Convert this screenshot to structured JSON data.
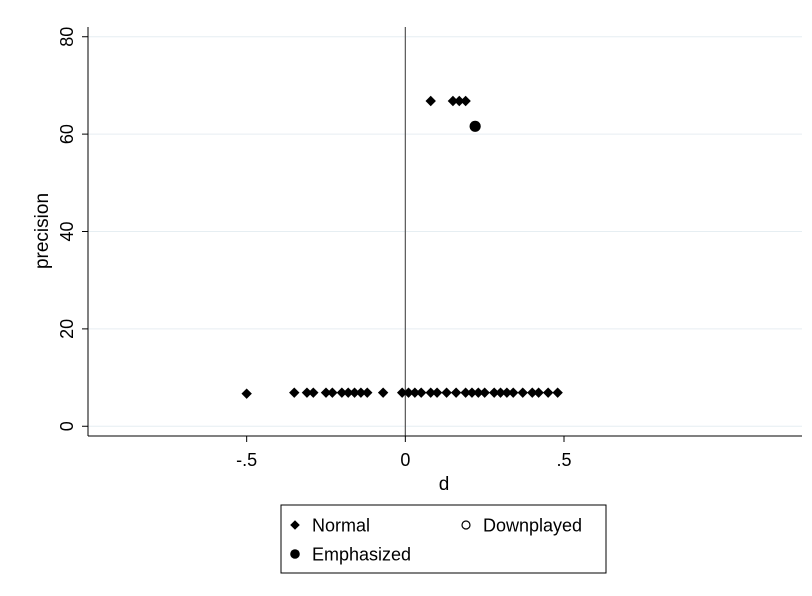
{
  "chart_data": {
    "type": "scatter",
    "title": "",
    "xlabel": "d",
    "ylabel": "precision",
    "xlim": [
      -1.0,
      1.25
    ],
    "ylim": [
      -2,
      82
    ],
    "x_ticks": [
      {
        "value": -0.5,
        "label": "-.5"
      },
      {
        "value": 0,
        "label": "0"
      },
      {
        "value": 0.5,
        "label": ".5"
      }
    ],
    "y_ticks": [
      {
        "value": 0,
        "label": "0"
      },
      {
        "value": 20,
        "label": "20"
      },
      {
        "value": 40,
        "label": "40"
      },
      {
        "value": 60,
        "label": "60"
      },
      {
        "value": 80,
        "label": "80"
      }
    ],
    "grid": "horizontal",
    "reference_line_x": 0,
    "legend_position": "bottom",
    "series": [
      {
        "name": "Normal",
        "marker": "diamond",
        "color": "#000000",
        "points": [
          [
            -0.5,
            6.7
          ],
          [
            -0.35,
            6.9
          ],
          [
            -0.31,
            6.9
          ],
          [
            -0.29,
            6.9
          ],
          [
            -0.25,
            6.9
          ],
          [
            -0.23,
            6.9
          ],
          [
            -0.2,
            6.9
          ],
          [
            -0.18,
            6.9
          ],
          [
            -0.16,
            6.9
          ],
          [
            -0.14,
            6.9
          ],
          [
            -0.12,
            6.9
          ],
          [
            -0.07,
            6.9
          ],
          [
            -0.01,
            6.9
          ],
          [
            0.01,
            6.9
          ],
          [
            0.03,
            6.9
          ],
          [
            0.05,
            6.9
          ],
          [
            0.08,
            6.9
          ],
          [
            0.1,
            6.9
          ],
          [
            0.13,
            6.9
          ],
          [
            0.16,
            6.9
          ],
          [
            0.19,
            6.9
          ],
          [
            0.21,
            6.9
          ],
          [
            0.23,
            6.9
          ],
          [
            0.25,
            6.9
          ],
          [
            0.28,
            6.9
          ],
          [
            0.3,
            6.9
          ],
          [
            0.32,
            6.9
          ],
          [
            0.34,
            6.9
          ],
          [
            0.37,
            6.9
          ],
          [
            0.4,
            6.9
          ],
          [
            0.42,
            6.9
          ],
          [
            0.45,
            6.9
          ],
          [
            0.48,
            6.9
          ],
          [
            0.08,
            66.8
          ],
          [
            0.15,
            66.8
          ],
          [
            0.17,
            66.8
          ],
          [
            0.19,
            66.8
          ]
        ]
      },
      {
        "name": "Downplayed",
        "marker": "hollow-circle",
        "color": "#000000",
        "points": []
      },
      {
        "name": "Emphasized",
        "marker": "filled-circle",
        "color": "#000000",
        "points": [
          [
            0.22,
            61.6
          ]
        ]
      }
    ]
  }
}
